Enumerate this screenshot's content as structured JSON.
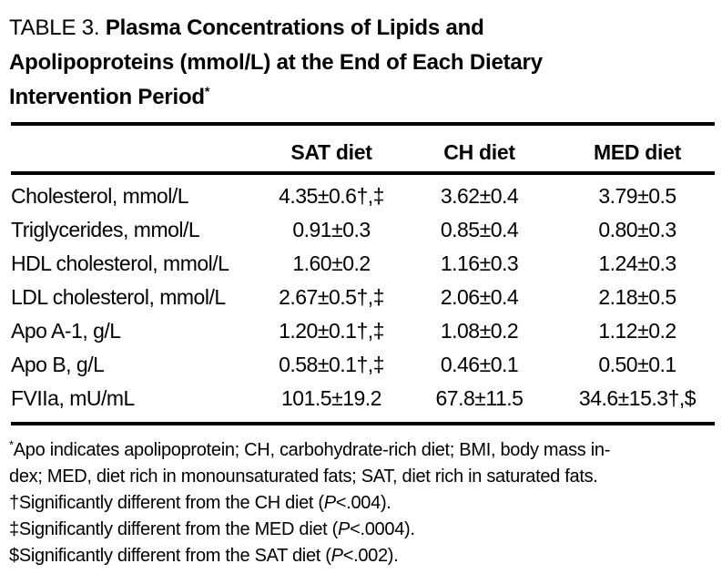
{
  "title": {
    "lines": [
      {
        "regular": "TABLE 3. ",
        "bold": "Plasma Concentrations of Lipids and"
      },
      {
        "bold": "Apolipoproteins (mmol/L) at the End of Each Dietary"
      },
      {
        "bold": "Intervention Period",
        "sup": "*"
      }
    ]
  },
  "table": {
    "column_headers": [
      "SAT diet",
      "CH diet",
      "MED diet"
    ],
    "rows": [
      {
        "label": "Cholesterol, mmol/L",
        "sat": "4.35±0.6†,‡",
        "ch": "3.62±0.4",
        "med": "3.79±0.5"
      },
      {
        "label": "Triglycerides, mmol/L",
        "sat": "0.91±0.3",
        "ch": "0.85±0.4",
        "med": "0.80±0.3"
      },
      {
        "label": "HDL cholesterol, mmol/L",
        "sat": "1.60±0.2",
        "ch": "1.16±0.3",
        "med": "1.24±0.3"
      },
      {
        "label": "LDL cholesterol, mmol/L",
        "sat": "2.67±0.5†,‡",
        "ch": "2.06±0.4",
        "med": "2.18±0.5"
      },
      {
        "label": "Apo A-1, g/L",
        "sat": "1.20±0.1†,‡",
        "ch": "1.08±0.2",
        "med": "1.12±0.2"
      },
      {
        "label": "Apo B, g/L",
        "sat": "0.58±0.1†,‡",
        "ch": "0.46±0.1",
        "med": "0.50±0.1"
      },
      {
        "label": "FVIIa, mU/mL",
        "sat": "101.5±19.2",
        "ch": "67.8±11.5",
        "med": "34.6±15.3†,$"
      }
    ]
  },
  "footnotes": [
    {
      "sup": "*",
      "text": "Apo indicates apolipoprotein; CH, carbohydrate-rich diet; BMI, body mass in-"
    },
    {
      "text": "dex; MED, diet rich in monounsaturated fats; SAT, diet rich in saturated fats."
    },
    {
      "text": "†Significantly different from the CH diet (",
      "italic": "P",
      "after": "<.004)."
    },
    {
      "text": "‡Significantly different from the MED diet (",
      "italic": "P",
      "after": "<.0004)."
    },
    {
      "text": "$Significantly different from the SAT diet (",
      "italic": "P",
      "after": "<.002)."
    }
  ],
  "colors": {
    "text": "#000000",
    "background": "#ffffff",
    "rule": "#000000"
  }
}
